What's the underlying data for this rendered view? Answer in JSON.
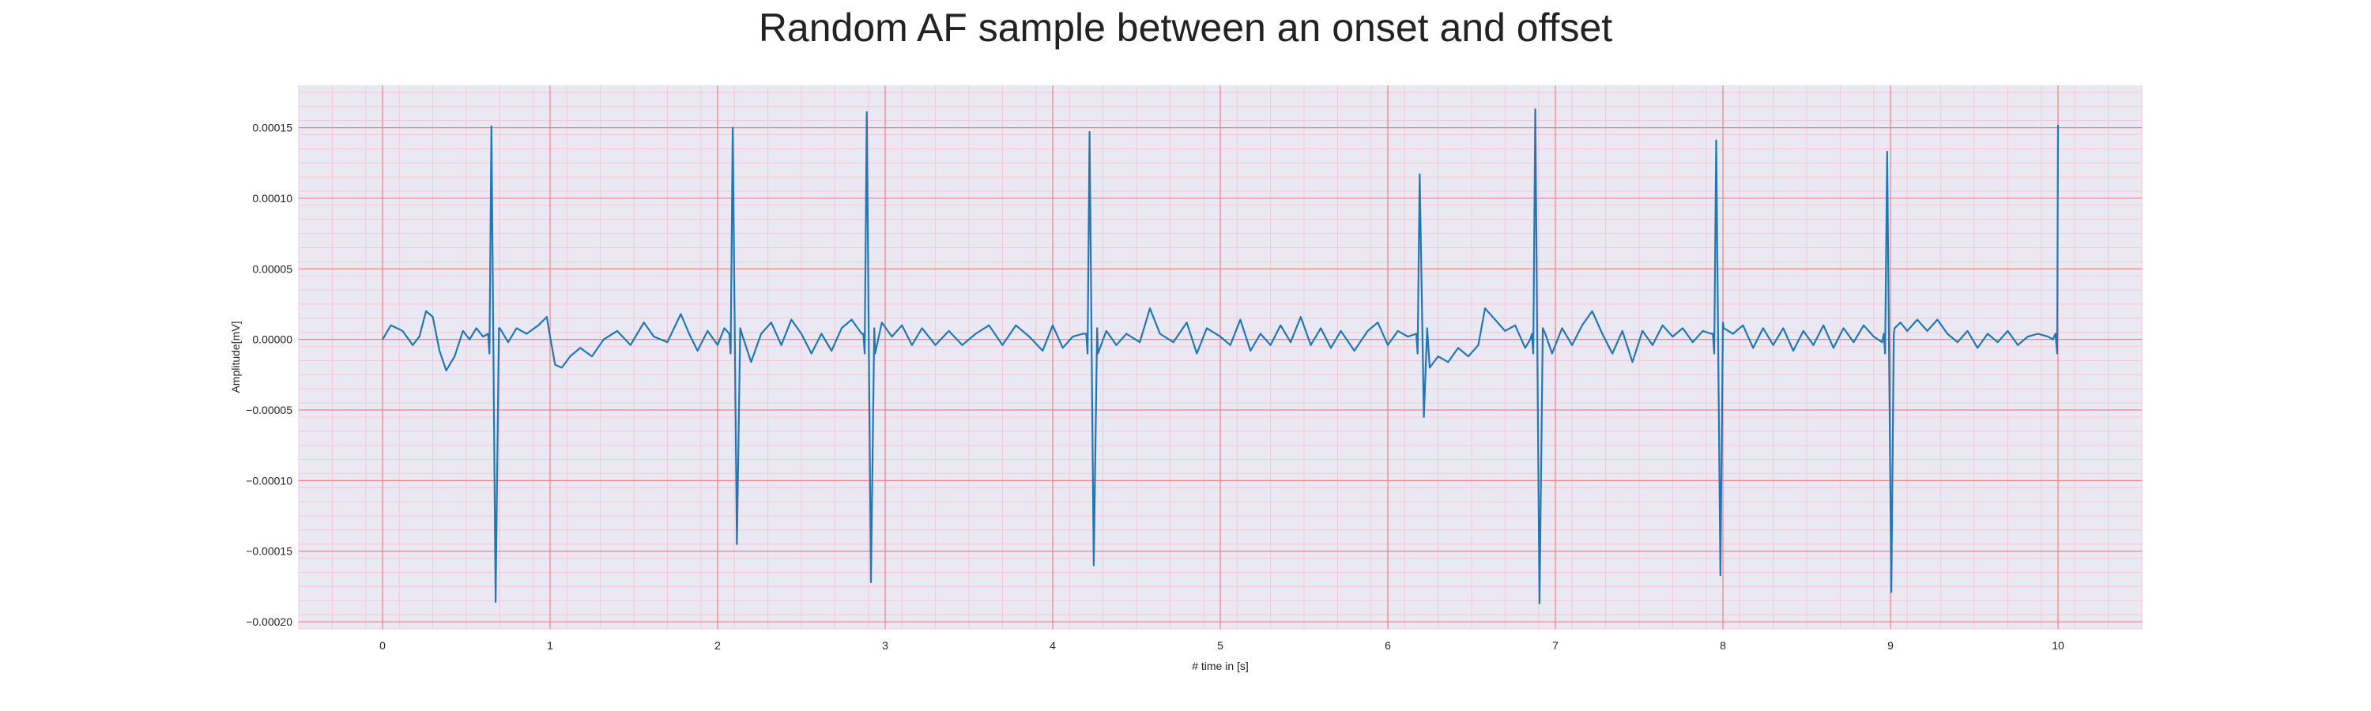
{
  "chart_data": {
    "type": "line",
    "title": "Random AF sample between an onset and offset",
    "xlabel": "# time in [s]",
    "ylabel": "Amplitude[mV]",
    "xlim": [
      -0.5,
      10.5
    ],
    "ylim": [
      -0.000205,
      0.00018
    ],
    "x_ticks": [
      0,
      1,
      2,
      3,
      4,
      5,
      6,
      7,
      8,
      9,
      10
    ],
    "x_tick_labels": [
      "0",
      "1",
      "2",
      "3",
      "4",
      "5",
      "6",
      "7",
      "8",
      "9",
      "10"
    ],
    "y_ticks": [
      0.00015,
      0.0001,
      5e-05,
      0.0,
      -5e-05,
      -0.0001,
      -0.00015,
      -0.0002
    ],
    "y_tick_labels": [
      "0.00015",
      "0.00010",
      "0.00005",
      "0.00000",
      "−0.00005",
      "−0.00010",
      "−0.00015",
      "−0.00020"
    ],
    "grid": true,
    "background_color": "#eae8f2",
    "major_grid_color": "#f08080",
    "minor_grid_color": "#f5c8d6",
    "series": [
      {
        "color": "#1f77b4",
        "baseline_points": [
          [
            0.0,
            0.0
          ],
          [
            0.05,
            1e-05
          ],
          [
            0.12,
            6e-06
          ],
          [
            0.18,
            -4e-06
          ],
          [
            0.22,
            2e-06
          ],
          [
            0.26,
            2e-05
          ],
          [
            0.3,
            1.6e-05
          ],
          [
            0.34,
            -8e-06
          ],
          [
            0.38,
            -2.2e-05
          ],
          [
            0.43,
            -1.2e-05
          ],
          [
            0.48,
            6e-06
          ],
          [
            0.52,
            0.0
          ],
          [
            0.56,
            8e-06
          ],
          [
            0.6,
            2e-06
          ],
          [
            0.7,
            8e-06
          ],
          [
            0.75,
            -2e-06
          ],
          [
            0.8,
            8e-06
          ],
          [
            0.86,
            4e-06
          ],
          [
            0.93,
            1e-05
          ],
          [
            0.98,
            1.6e-05
          ],
          [
            1.0,
            2e-06
          ],
          [
            1.03,
            -1.8e-05
          ],
          [
            1.07,
            -2e-05
          ],
          [
            1.12,
            -1.2e-05
          ],
          [
            1.18,
            -6e-06
          ],
          [
            1.25,
            -1.2e-05
          ],
          [
            1.32,
            0.0
          ],
          [
            1.4,
            6e-06
          ],
          [
            1.48,
            -4e-06
          ],
          [
            1.56,
            1.2e-05
          ],
          [
            1.62,
            2e-06
          ],
          [
            1.7,
            -2e-06
          ],
          [
            1.78,
            1.8e-05
          ],
          [
            1.83,
            4e-06
          ],
          [
            1.88,
            -8e-06
          ],
          [
            1.94,
            6e-06
          ],
          [
            2.0,
            -4e-06
          ],
          [
            2.04,
            8e-06
          ],
          [
            2.15,
            2e-06
          ],
          [
            2.2,
            -1.6e-05
          ],
          [
            2.26,
            4e-06
          ],
          [
            2.32,
            1.2e-05
          ],
          [
            2.38,
            -4e-06
          ],
          [
            2.44,
            1.4e-05
          ],
          [
            2.5,
            4e-06
          ],
          [
            2.56,
            -1e-05
          ],
          [
            2.62,
            4e-06
          ],
          [
            2.68,
            -8e-06
          ],
          [
            2.74,
            8e-06
          ],
          [
            2.8,
            1.4e-05
          ],
          [
            2.86,
            4e-06
          ],
          [
            2.94,
            -1e-05
          ],
          [
            2.98,
            1.2e-05
          ],
          [
            3.04,
            2e-06
          ],
          [
            3.1,
            1e-05
          ],
          [
            3.16,
            -4e-06
          ],
          [
            3.22,
            8e-06
          ],
          [
            3.3,
            -4e-06
          ],
          [
            3.38,
            6e-06
          ],
          [
            3.46,
            -4e-06
          ],
          [
            3.54,
            4e-06
          ],
          [
            3.62,
            1e-05
          ],
          [
            3.7,
            -4e-06
          ],
          [
            3.78,
            1e-05
          ],
          [
            3.86,
            2e-06
          ],
          [
            3.94,
            -8e-06
          ],
          [
            4.0,
            1e-05
          ],
          [
            4.06,
            -6e-06
          ],
          [
            4.12,
            2e-06
          ],
          [
            4.18,
            4e-06
          ],
          [
            4.27,
            -1e-05
          ],
          [
            4.32,
            6e-06
          ],
          [
            4.38,
            -4e-06
          ],
          [
            4.44,
            4e-06
          ],
          [
            4.52,
            -2e-06
          ],
          [
            4.58,
            2.2e-05
          ],
          [
            4.64,
            4e-06
          ],
          [
            4.72,
            -2e-06
          ],
          [
            4.8,
            1.2e-05
          ],
          [
            4.86,
            -1e-05
          ],
          [
            4.92,
            8e-06
          ],
          [
            5.0,
            2e-06
          ],
          [
            5.06,
            -4e-06
          ],
          [
            5.12,
            1.4e-05
          ],
          [
            5.18,
            -8e-06
          ],
          [
            5.24,
            4e-06
          ],
          [
            5.3,
            -4e-06
          ],
          [
            5.36,
            1e-05
          ],
          [
            5.42,
            -2e-06
          ],
          [
            5.48,
            1.6e-05
          ],
          [
            5.54,
            -4e-06
          ],
          [
            5.6,
            8e-06
          ],
          [
            5.66,
            -6e-06
          ],
          [
            5.72,
            6e-06
          ],
          [
            5.8,
            -8e-06
          ],
          [
            5.88,
            6e-06
          ],
          [
            5.94,
            1.2e-05
          ],
          [
            6.0,
            -4e-06
          ],
          [
            6.06,
            6e-06
          ],
          [
            6.12,
            2e-06
          ],
          [
            6.25,
            -2e-05
          ],
          [
            6.3,
            -1.2e-05
          ],
          [
            6.36,
            -1.6e-05
          ],
          [
            6.42,
            -6e-06
          ],
          [
            6.48,
            -1.2e-05
          ],
          [
            6.54,
            -4e-06
          ],
          [
            6.58,
            2.2e-05
          ],
          [
            6.64,
            1.4e-05
          ],
          [
            6.7,
            6e-06
          ],
          [
            6.76,
            1e-05
          ],
          [
            6.82,
            -6e-06
          ],
          [
            6.85,
            0.0
          ],
          [
            6.94,
            4e-06
          ],
          [
            6.98,
            -1e-05
          ],
          [
            7.04,
            8e-06
          ],
          [
            7.1,
            -4e-06
          ],
          [
            7.16,
            1e-05
          ],
          [
            7.22,
            2e-05
          ],
          [
            7.28,
            4e-06
          ],
          [
            7.34,
            -1e-05
          ],
          [
            7.4,
            6e-06
          ],
          [
            7.46,
            -1.6e-05
          ],
          [
            7.52,
            6e-06
          ],
          [
            7.58,
            -4e-06
          ],
          [
            7.64,
            1e-05
          ],
          [
            7.7,
            2e-06
          ],
          [
            7.76,
            8e-06
          ],
          [
            7.82,
            -2e-06
          ],
          [
            7.88,
            6e-06
          ],
          [
            7.93,
            4e-06
          ],
          [
            8.0,
            1.2e-05
          ],
          [
            8.06,
            4e-06
          ],
          [
            8.12,
            1e-05
          ],
          [
            8.18,
            -6e-06
          ],
          [
            8.24,
            8e-06
          ],
          [
            8.3,
            -4e-06
          ],
          [
            8.36,
            8e-06
          ],
          [
            8.42,
            -8e-06
          ],
          [
            8.48,
            6e-06
          ],
          [
            8.54,
            -4e-06
          ],
          [
            8.6,
            1e-05
          ],
          [
            8.66,
            -6e-06
          ],
          [
            8.72,
            8e-06
          ],
          [
            8.78,
            -2e-06
          ],
          [
            8.84,
            1e-05
          ],
          [
            8.9,
            2e-06
          ],
          [
            8.95,
            -2e-06
          ],
          [
            9.02,
            4e-06
          ],
          [
            9.06,
            1.2e-05
          ],
          [
            9.1,
            6e-06
          ],
          [
            9.16,
            1.4e-05
          ],
          [
            9.22,
            6e-06
          ],
          [
            9.28,
            1.4e-05
          ],
          [
            9.34,
            4e-06
          ],
          [
            9.4,
            -2e-06
          ],
          [
            9.46,
            6e-06
          ],
          [
            9.52,
            -6e-06
          ],
          [
            9.58,
            4e-06
          ],
          [
            9.64,
            -2e-06
          ],
          [
            9.7,
            6e-06
          ],
          [
            9.76,
            -4e-06
          ],
          [
            9.82,
            2e-06
          ],
          [
            9.88,
            4e-06
          ],
          [
            9.94,
            2e-06
          ],
          [
            9.97,
            0.0
          ]
        ],
        "qrs_complexes": [
          {
            "t": 0.65,
            "r": 0.000151,
            "s": -0.000186
          },
          {
            "t": 2.09,
            "r": 0.00015,
            "s": -0.000145
          },
          {
            "t": 2.89,
            "r": 0.000161,
            "s": -0.000172
          },
          {
            "t": 4.22,
            "r": 0.000147,
            "s": -0.00016
          },
          {
            "t": 6.19,
            "r": 0.000117,
            "s": -5.5e-05
          },
          {
            "t": 6.88,
            "r": 0.000163,
            "s": -0.000187
          },
          {
            "t": 7.96,
            "r": 0.000141,
            "s": -0.000167
          },
          {
            "t": 8.98,
            "r": 0.000133,
            "s": -0.000179
          }
        ],
        "end_spike": {
          "t": 10.0,
          "r": 0.000152,
          "s": -1e-05
        }
      }
    ]
  }
}
